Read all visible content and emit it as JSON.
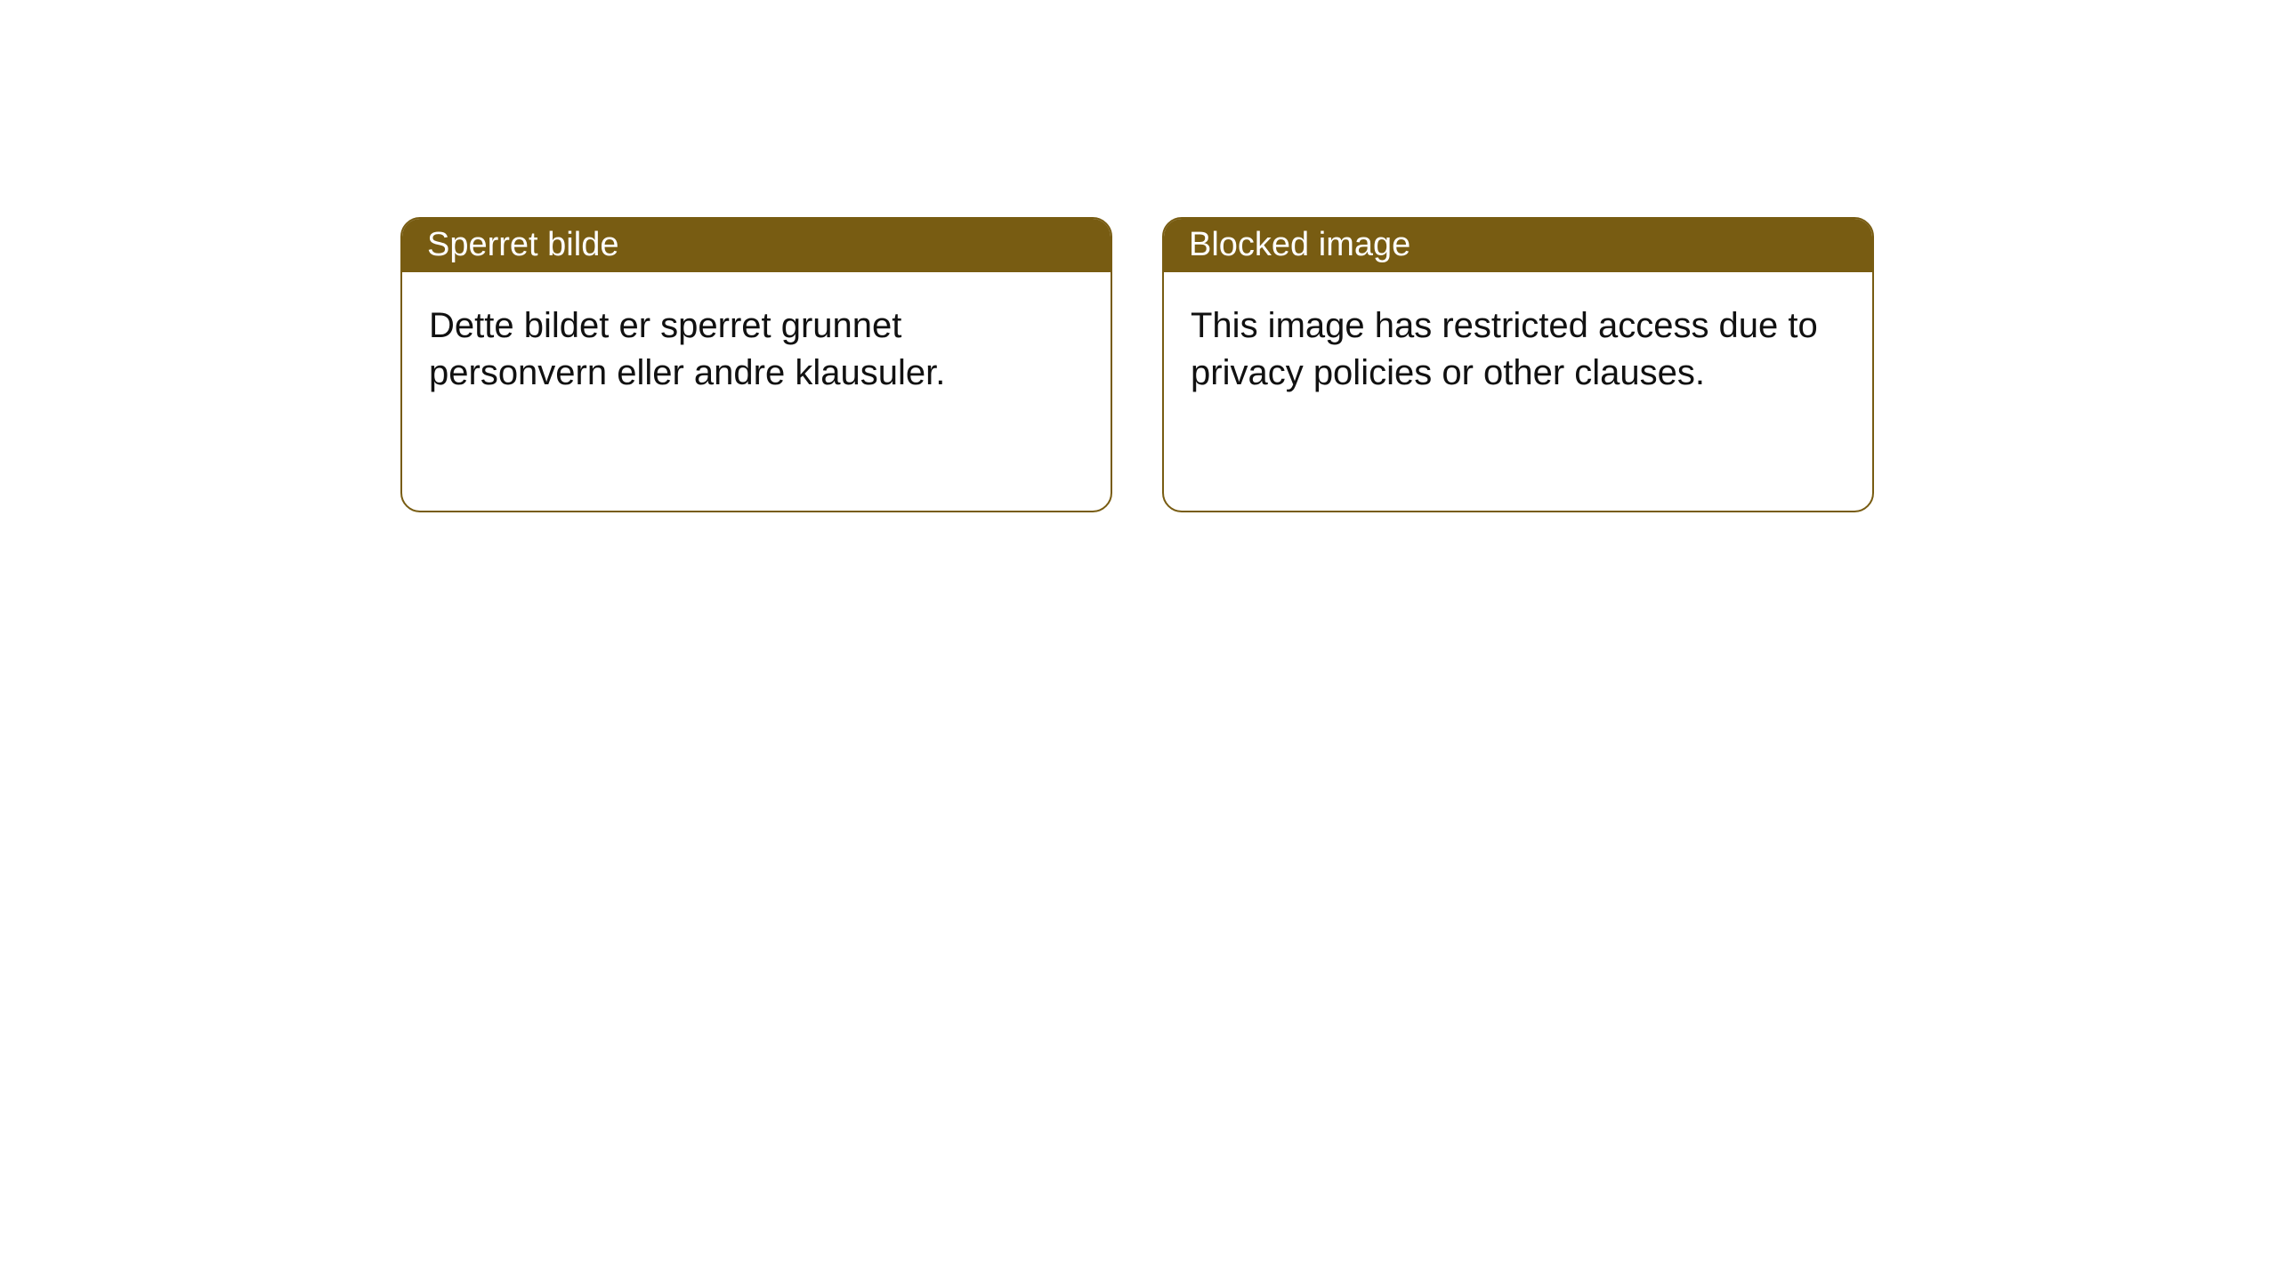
{
  "colors": {
    "header_bg": "#785c12",
    "border": "#785c12",
    "header_text": "#ffffff",
    "body_text": "#111111",
    "background": "#ffffff"
  },
  "cards": [
    {
      "title": "Sperret bilde",
      "body": "Dette bildet er sperret grunnet personvern eller andre klausuler."
    },
    {
      "title": "Blocked image",
      "body": "This image has restricted access due to privacy policies or other clauses."
    }
  ]
}
